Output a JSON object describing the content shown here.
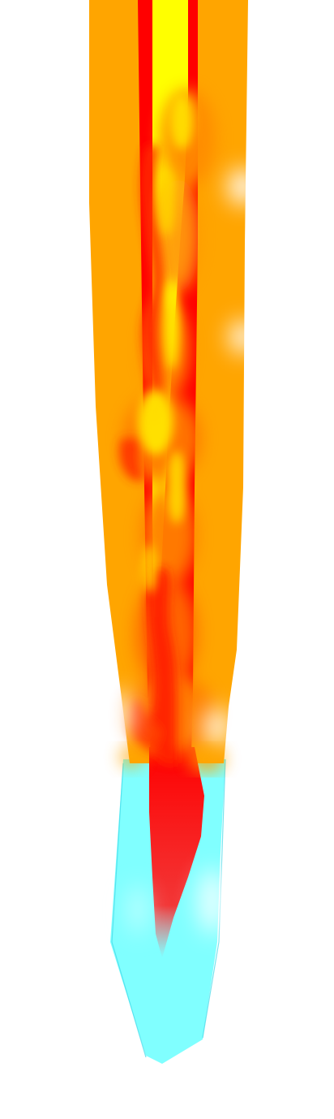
{
  "image": {
    "subject": "flame-trail",
    "colors": {
      "background": "#ffffff",
      "outer_band": "#ffa500",
      "inner_stripe": "#ff0000",
      "core": "#ffff00",
      "tail": "#80ffff",
      "flame_orange": "#ff8c00",
      "flame_red": "#ff1a00"
    }
  }
}
